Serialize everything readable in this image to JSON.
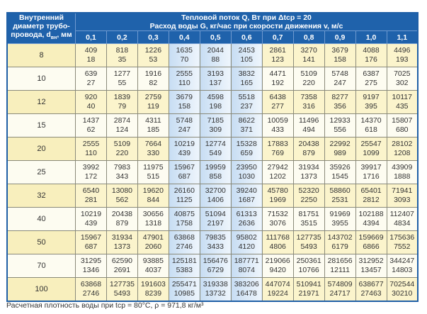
{
  "header": {
    "corner_line1": "Внутренний",
    "corner_line2": "диаметр трубо-",
    "corner_line3": "провода, d",
    "corner_sub": "вн",
    "corner_unit": ", мм",
    "title_line1": "Тепловой поток Q, Вт при Δtср = 20",
    "title_line2": "Расход воды G, кг/час при скорости движения v, м/с",
    "speeds": [
      "0,1",
      "0,2",
      "0,3",
      "0,4",
      "0,5",
      "0,6",
      "0,7",
      "0,8",
      "0,9",
      "1,0",
      "1,1"
    ],
    "highlighted_speeds": [
      "0,4",
      "0,5",
      "0,6"
    ]
  },
  "rows": [
    {
      "d": "8",
      "q": [
        "409",
        "818",
        "1226",
        "1635",
        "2044",
        "2453",
        "2861",
        "3270",
        "3679",
        "4088",
        "4496"
      ],
      "g": [
        "18",
        "35",
        "53",
        "70",
        "88",
        "105",
        "123",
        "141",
        "158",
        "176",
        "193"
      ]
    },
    {
      "d": "10",
      "q": [
        "639",
        "1277",
        "1916",
        "2555",
        "3193",
        "3832",
        "4471",
        "5109",
        "5748",
        "6387",
        "7025"
      ],
      "g": [
        "27",
        "55",
        "82",
        "110",
        "137",
        "165",
        "192",
        "220",
        "247",
        "275",
        "302"
      ]
    },
    {
      "d": "12",
      "q": [
        "920",
        "1839",
        "2759",
        "3679",
        "4598",
        "5518",
        "6438",
        "7358",
        "8277",
        "9197",
        "10117"
      ],
      "g": [
        "40",
        "79",
        "119",
        "158",
        "198",
        "237",
        "277",
        "316",
        "356",
        "395",
        "435"
      ]
    },
    {
      "d": "15",
      "q": [
        "1437",
        "2874",
        "4311",
        "5748",
        "7185",
        "8622",
        "10059",
        "11496",
        "12933",
        "14370",
        "15807"
      ],
      "g": [
        "62",
        "124",
        "185",
        "247",
        "309",
        "371",
        "433",
        "494",
        "556",
        "618",
        "680"
      ]
    },
    {
      "d": "20",
      "q": [
        "2555",
        "5109",
        "7664",
        "10219",
        "12774",
        "15328",
        "17883",
        "20438",
        "22992",
        "25547",
        "28102"
      ],
      "g": [
        "110",
        "220",
        "330",
        "439",
        "549",
        "659",
        "769",
        "879",
        "989",
        "1099",
        "1208"
      ]
    },
    {
      "d": "25",
      "q": [
        "3992",
        "7983",
        "11975",
        "15967",
        "19959",
        "23950",
        "27942",
        "31934",
        "35926",
        "39917",
        "43909"
      ],
      "g": [
        "172",
        "343",
        "515",
        "687",
        "858",
        "1030",
        "1202",
        "1373",
        "1545",
        "1716",
        "1888"
      ]
    },
    {
      "d": "32",
      "q": [
        "6540",
        "13080",
        "19620",
        "26160",
        "32700",
        "39240",
        "45780",
        "52320",
        "58860",
        "65401",
        "71941"
      ],
      "g": [
        "281",
        "562",
        "844",
        "1125",
        "1406",
        "1687",
        "1969",
        "2250",
        "2531",
        "2812",
        "3093"
      ]
    },
    {
      "d": "40",
      "q": [
        "10219",
        "20438",
        "30656",
        "40875",
        "51094",
        "61313",
        "71532",
        "81751",
        "91969",
        "102188",
        "112407"
      ],
      "g": [
        "439",
        "879",
        "1318",
        "1758",
        "2197",
        "2636",
        "3076",
        "3515",
        "3955",
        "4394",
        "4834"
      ]
    },
    {
      "d": "50",
      "q": [
        "15967",
        "31934",
        "47901",
        "63868",
        "79835",
        "95802",
        "111768",
        "127735",
        "143702",
        "159669",
        "175636"
      ],
      "g": [
        "687",
        "1373",
        "2060",
        "2746",
        "3433",
        "4120",
        "4806",
        "5493",
        "6179",
        "6866",
        "7552"
      ]
    },
    {
      "d": "70",
      "q": [
        "31295",
        "62590",
        "93885",
        "125181",
        "156476",
        "187771",
        "219066",
        "250361",
        "281656",
        "312952",
        "344247"
      ],
      "g": [
        "1346",
        "2691",
        "4037",
        "5383",
        "6729",
        "8074",
        "9420",
        "10766",
        "12111",
        "13457",
        "14803"
      ]
    },
    {
      "d": "100",
      "q": [
        "63868",
        "127735",
        "191603",
        "255471",
        "319338",
        "383206",
        "447074",
        "510941",
        "574809",
        "638677",
        "702544"
      ],
      "g": [
        "2746",
        "5493",
        "8239",
        "10985",
        "13732",
        "16478",
        "19224",
        "21971",
        "24717",
        "27463",
        "30210"
      ]
    }
  ],
  "footnote": "Расчетная плотность воды при tср = 80°С, ρ = 971,8 кг/м³",
  "colors": {
    "header": "#1f62ab",
    "odd_row": "#fbf4cc",
    "even_row": "#fdfcf1",
    "highlight": "#c7ddf3"
  }
}
